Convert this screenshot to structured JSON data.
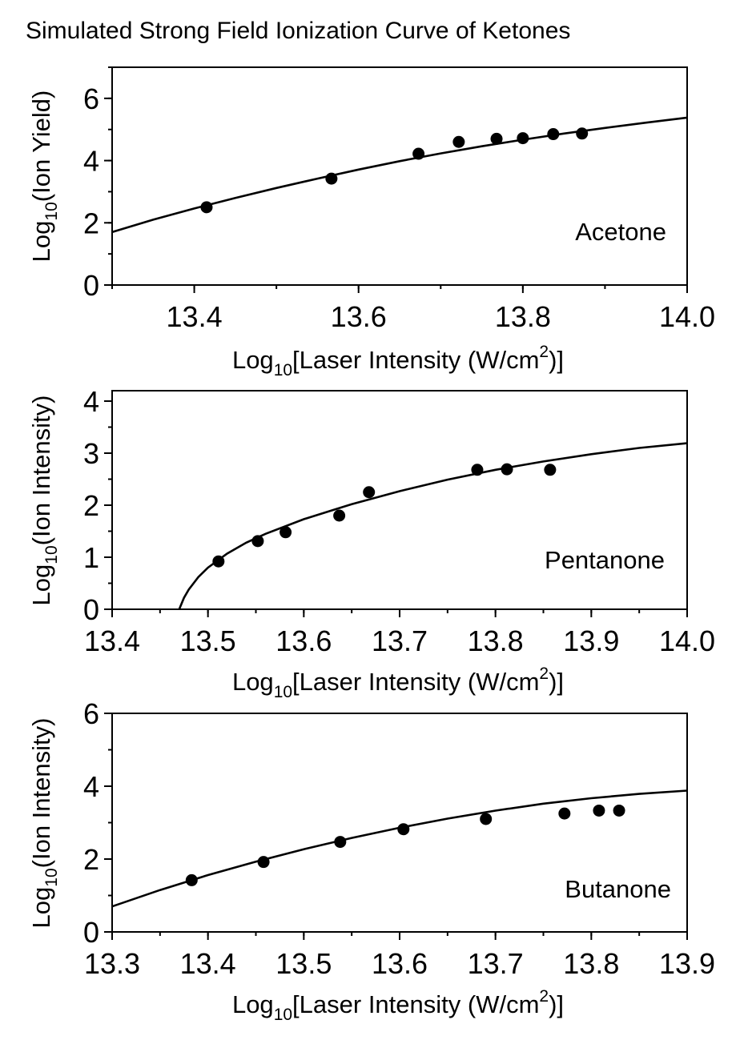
{
  "title": "Simulated Strong Field Ionization Curve of Ketones",
  "colors": {
    "line": "#000000",
    "marker": "#000000",
    "background": "#ffffff"
  },
  "chart_data": [
    {
      "type": "scatter",
      "label": "Acetone",
      "xlabel": {
        "main": "Log",
        "sub": "10",
        "rest": "[Laser Intensity (W/cm",
        "sup": "2",
        "end": ")]"
      },
      "ylabel": {
        "main": "Log",
        "sub": "10",
        "rest": "(Ion Yield)"
      },
      "xlim": [
        13.3,
        14.0
      ],
      "ylim": [
        0,
        7
      ],
      "xticks": [
        "13.4",
        "13.6",
        "13.8",
        "14.0"
      ],
      "yticks": [
        "0",
        "2",
        "4",
        "6"
      ],
      "x_minor_step": 0.1,
      "y_minor_step": 1,
      "points": {
        "x": [
          13.415,
          13.567,
          13.673,
          13.722,
          13.768,
          13.8,
          13.837,
          13.872
        ],
        "y": [
          2.5,
          3.42,
          4.22,
          4.6,
          4.7,
          4.72,
          4.85,
          4.87
        ]
      },
      "fit_curve": {
        "x": [
          13.3,
          13.35,
          13.4,
          13.45,
          13.5,
          13.55,
          13.6,
          13.65,
          13.7,
          13.75,
          13.8,
          13.85,
          13.9,
          13.95,
          14.0
        ],
        "y": [
          1.7,
          2.1,
          2.46,
          2.8,
          3.12,
          3.42,
          3.71,
          3.98,
          4.23,
          4.46,
          4.67,
          4.87,
          5.05,
          5.22,
          5.38
        ]
      }
    },
    {
      "type": "scatter",
      "label": "Pentanone",
      "xlabel": {
        "main": "Log",
        "sub": "10",
        "rest": "[Laser Intensity (W/cm",
        "sup": "2",
        "end": ")]"
      },
      "ylabel": {
        "main": "Log",
        "sub": "10",
        "rest": "(Ion Intensity)"
      },
      "xlim": [
        13.4,
        14.0
      ],
      "ylim": [
        0,
        4.2
      ],
      "xticks": [
        "13.4",
        "13.5",
        "13.6",
        "13.7",
        "13.8",
        "13.9",
        "14.0"
      ],
      "yticks": [
        "0",
        "1",
        "2",
        "3",
        "4"
      ],
      "x_minor_step": 0.05,
      "y_minor_step": 0.5,
      "points": {
        "x": [
          13.511,
          13.552,
          13.581,
          13.637,
          13.668,
          13.781,
          13.812,
          13.857
        ],
        "y": [
          0.92,
          1.31,
          1.48,
          1.8,
          2.25,
          2.68,
          2.69,
          2.68
        ]
      },
      "fit_curve": {
        "x": [
          13.47,
          13.475,
          13.48,
          13.49,
          13.5,
          13.52,
          13.54,
          13.56,
          13.6,
          13.65,
          13.7,
          13.75,
          13.8,
          13.85,
          13.9,
          13.95,
          14.0
        ],
        "y": [
          0.0,
          0.22,
          0.38,
          0.62,
          0.8,
          1.07,
          1.28,
          1.45,
          1.73,
          2.02,
          2.27,
          2.49,
          2.68,
          2.84,
          2.98,
          3.1,
          3.19
        ]
      }
    },
    {
      "type": "scatter",
      "label": "Butanone",
      "xlabel": {
        "main": "Log",
        "sub": "10",
        "rest": "[Laser Intensity (W/cm",
        "sup": "2",
        "end": ")]"
      },
      "ylabel": {
        "main": "Log",
        "sub": "10",
        "rest": "(Ion Intensity)"
      },
      "xlim": [
        13.3,
        13.9
      ],
      "ylim": [
        0,
        6
      ],
      "xticks": [
        "13.3",
        "13.4",
        "13.5",
        "13.6",
        "13.7",
        "13.8",
        "13.9"
      ],
      "yticks": [
        "0",
        "2",
        "4",
        "6"
      ],
      "x_minor_step": 0.05,
      "y_minor_step": 1,
      "points": {
        "x": [
          13.383,
          13.458,
          13.538,
          13.604,
          13.69,
          13.772,
          13.808,
          13.829
        ],
        "y": [
          1.42,
          1.92,
          2.47,
          2.82,
          3.1,
          3.25,
          3.33,
          3.33
        ]
      },
      "fit_curve": {
        "x": [
          13.3,
          13.35,
          13.4,
          13.45,
          13.5,
          13.55,
          13.6,
          13.65,
          13.7,
          13.75,
          13.8,
          13.85,
          13.9
        ],
        "y": [
          0.7,
          1.15,
          1.56,
          1.93,
          2.27,
          2.58,
          2.86,
          3.11,
          3.33,
          3.52,
          3.67,
          3.79,
          3.88
        ]
      }
    }
  ]
}
